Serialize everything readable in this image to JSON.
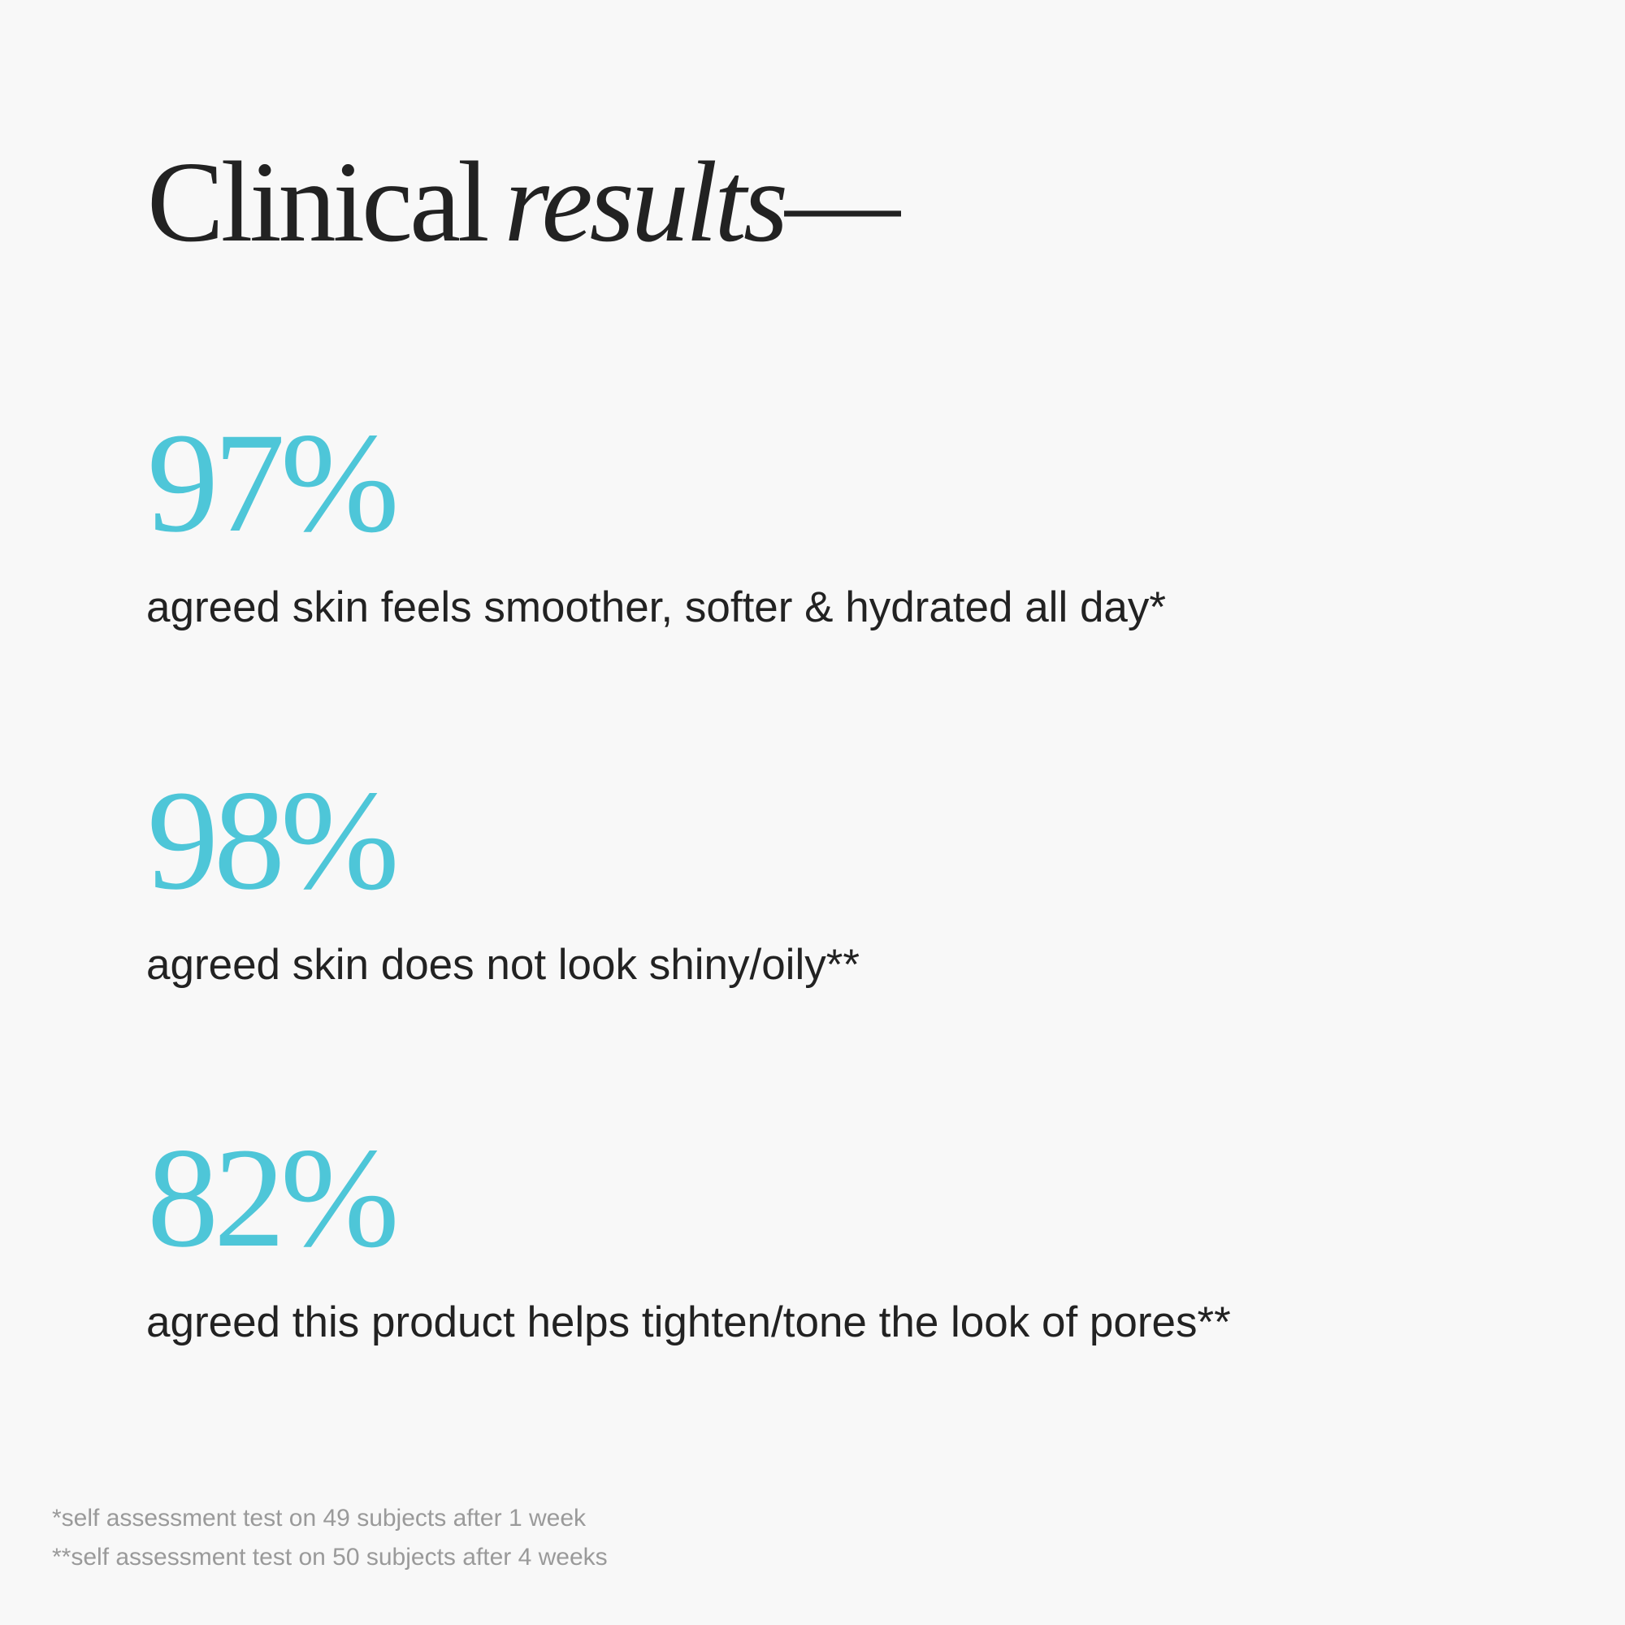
{
  "title": {
    "regular": "Clinical",
    "italic": "results",
    "dash": "—"
  },
  "stats": [
    {
      "value": "97%",
      "description": "agreed skin feels smoother, softer & hydrated all day*"
    },
    {
      "value": "98%",
      "description": "agreed skin does not look shiny/oily**"
    },
    {
      "value": "82%",
      "description": "agreed this product helps tighten/tone the look of pores**"
    }
  ],
  "footnotes": [
    "*self assessment test on 49 subjects after 1 week",
    "**self assessment test on 50 subjects after 4 weeks"
  ]
}
